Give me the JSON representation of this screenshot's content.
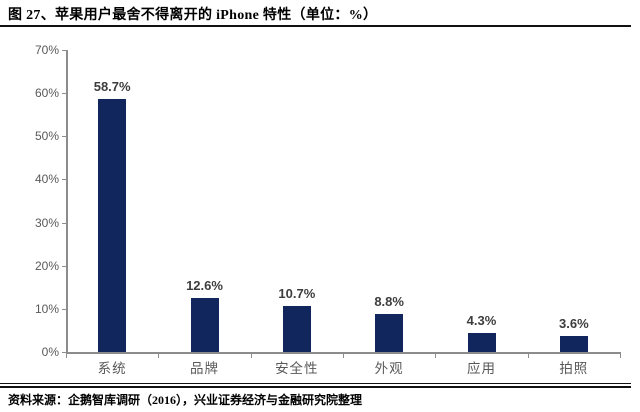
{
  "header": {
    "title": "图 27、苹果用户最舍不得离开的 iPhone 特性（单位：%）"
  },
  "chart_data": {
    "type": "bar",
    "title": "图 27、苹果用户最舍不得离开的 iPhone 特性（单位：%）",
    "unit": "%",
    "categories": [
      "系统",
      "品牌",
      "安全性",
      "外观",
      "应用",
      "拍照"
    ],
    "values": [
      58.7,
      12.6,
      10.7,
      8.8,
      4.3,
      3.6
    ],
    "value_labels": [
      "58.7%",
      "12.6%",
      "10.7%",
      "8.8%",
      "4.3%",
      "3.6%"
    ],
    "xlabel": "",
    "ylabel": "",
    "ylim": [
      0,
      70
    ],
    "y_ticks": [
      "0%",
      "10%",
      "20%",
      "30%",
      "40%",
      "50%",
      "60%",
      "70%"
    ],
    "grid": false,
    "legend": "none",
    "bar_color": "#12265E",
    "axis_color": "#8C8C8C",
    "tick_label_color": "#595959",
    "category_label_color": "#595959",
    "data_label_color": "#3D3D3D"
  },
  "footer": {
    "source": "资料来源：企鹅智库调研（2016），兴业证券经济与金融研究院整理"
  }
}
